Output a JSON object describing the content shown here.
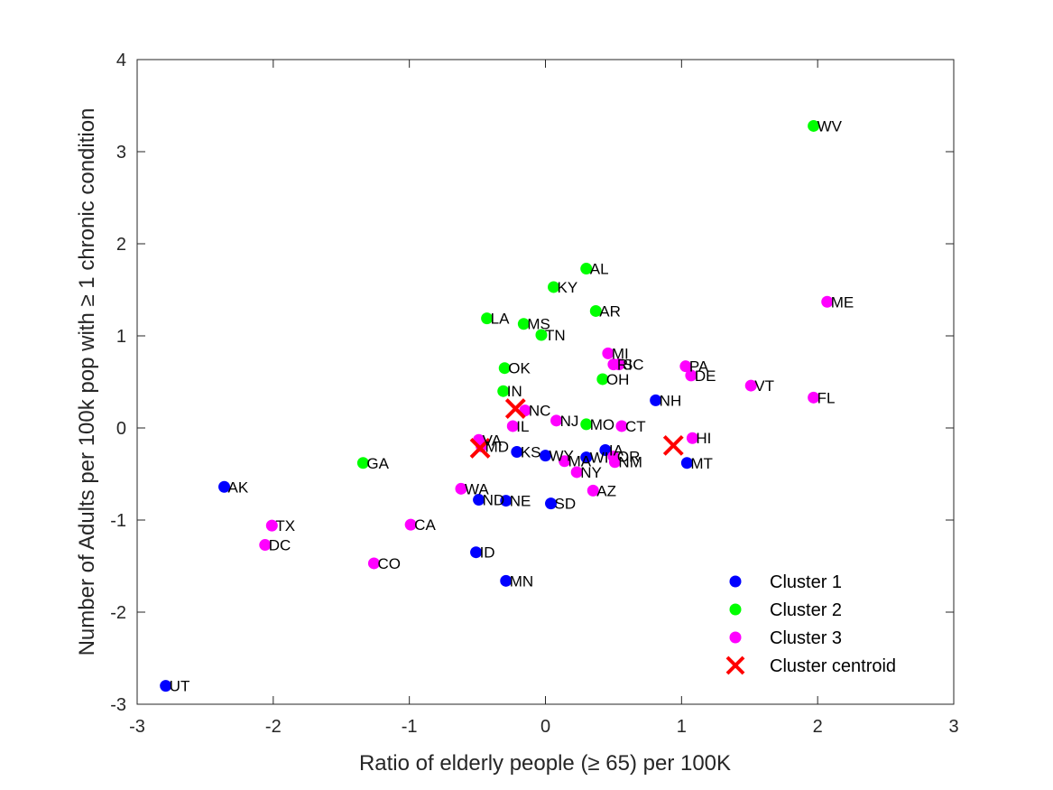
{
  "chart_data": {
    "type": "scatter",
    "title": "",
    "xlabel": "Ratio of elderly people (≥ 65) per 100K",
    "ylabel": "Number of Adults per 100k pop with ≥ 1 chronic condition",
    "xlim": [
      -3,
      3
    ],
    "ylim": [
      -3,
      4
    ],
    "xticks": [
      -3,
      -2,
      -1,
      0,
      1,
      2,
      3
    ],
    "yticks": [
      -3,
      -2,
      -1,
      0,
      1,
      2,
      3,
      4
    ],
    "legend_position": "bottom-right",
    "grid": false,
    "series": [
      {
        "name": "Cluster 1",
        "color": "#0000ff",
        "marker": "circle",
        "points": [
          {
            "label": "AK",
            "x": -2.36,
            "y": -0.64
          },
          {
            "label": "UT",
            "x": -2.79,
            "y": -2.8
          },
          {
            "label": "ND",
            "x": -0.49,
            "y": -0.78
          },
          {
            "label": "NE",
            "x": -0.29,
            "y": -0.79
          },
          {
            "label": "SD",
            "x": 0.04,
            "y": -0.82
          },
          {
            "label": "ID",
            "x": -0.51,
            "y": -1.35
          },
          {
            "label": "MN",
            "x": -0.29,
            "y": -1.66
          },
          {
            "label": "KS",
            "x": -0.21,
            "y": -0.26
          },
          {
            "label": "WY",
            "x": 0.0,
            "y": -0.3
          },
          {
            "label": "WI",
            "x": 0.3,
            "y": -0.32
          },
          {
            "label": "IA",
            "x": 0.44,
            "y": -0.24
          },
          {
            "label": "NH",
            "x": 0.81,
            "y": 0.3
          },
          {
            "label": "MT",
            "x": 1.04,
            "y": -0.38
          }
        ]
      },
      {
        "name": "Cluster 2",
        "color": "#00ff00",
        "marker": "circle",
        "points": [
          {
            "label": "WV",
            "x": 1.97,
            "y": 3.28
          },
          {
            "label": "AL",
            "x": 0.3,
            "y": 1.73
          },
          {
            "label": "KY",
            "x": 0.06,
            "y": 1.53
          },
          {
            "label": "AR",
            "x": 0.37,
            "y": 1.27
          },
          {
            "label": "LA",
            "x": -0.43,
            "y": 1.19
          },
          {
            "label": "MS",
            "x": -0.16,
            "y": 1.13
          },
          {
            "label": "TN",
            "x": -0.03,
            "y": 1.01
          },
          {
            "label": "OK",
            "x": -0.3,
            "y": 0.65
          },
          {
            "label": "OH",
            "x": 0.42,
            "y": 0.53
          },
          {
            "label": "IN",
            "x": -0.31,
            "y": 0.4
          },
          {
            "label": "MO",
            "x": 0.3,
            "y": 0.04
          },
          {
            "label": "GA",
            "x": -1.34,
            "y": -0.38
          }
        ]
      },
      {
        "name": "Cluster 3",
        "color": "#ff00ff",
        "marker": "circle",
        "points": [
          {
            "label": "ME",
            "x": 2.07,
            "y": 1.37
          },
          {
            "label": "FL",
            "x": 1.97,
            "y": 0.33
          },
          {
            "label": "VT",
            "x": 1.51,
            "y": 0.46
          },
          {
            "label": "PA",
            "x": 1.03,
            "y": 0.67
          },
          {
            "label": "DE",
            "x": 1.07,
            "y": 0.57
          },
          {
            "label": "MI",
            "x": 0.46,
            "y": 0.81
          },
          {
            "label": "RI",
            "x": 0.5,
            "y": 0.69
          },
          {
            "label": "SC",
            "x": 0.54,
            "y": 0.69
          },
          {
            "label": "NC",
            "x": -0.15,
            "y": 0.19
          },
          {
            "label": "NJ",
            "x": 0.08,
            "y": 0.08
          },
          {
            "label": "IL",
            "x": -0.24,
            "y": 0.02
          },
          {
            "label": "CT",
            "x": 0.56,
            "y": 0.02
          },
          {
            "label": "HI",
            "x": 1.08,
            "y": -0.11
          },
          {
            "label": "VA",
            "x": -0.49,
            "y": -0.13
          },
          {
            "label": "MD",
            "x": -0.47,
            "y": -0.2
          },
          {
            "label": "MA",
            "x": 0.14,
            "y": -0.36
          },
          {
            "label": "NY",
            "x": 0.23,
            "y": -0.48
          },
          {
            "label": "OR",
            "x": 0.5,
            "y": -0.31
          },
          {
            "label": "NM",
            "x": 0.51,
            "y": -0.37
          },
          {
            "label": "WA",
            "x": -0.62,
            "y": -0.66
          },
          {
            "label": "AZ",
            "x": 0.35,
            "y": -0.68
          },
          {
            "label": "CA",
            "x": -0.99,
            "y": -1.05
          },
          {
            "label": "TX",
            "x": -2.01,
            "y": -1.06
          },
          {
            "label": "DC",
            "x": -2.06,
            "y": -1.27
          },
          {
            "label": "CO",
            "x": -1.26,
            "y": -1.47
          }
        ]
      },
      {
        "name": "Cluster centroid",
        "color": "#ff0000",
        "marker": "x",
        "points": [
          {
            "x": -0.22,
            "y": 0.21
          },
          {
            "x": -0.48,
            "y": -0.22
          },
          {
            "x": 0.94,
            "y": -0.19
          }
        ]
      }
    ]
  }
}
